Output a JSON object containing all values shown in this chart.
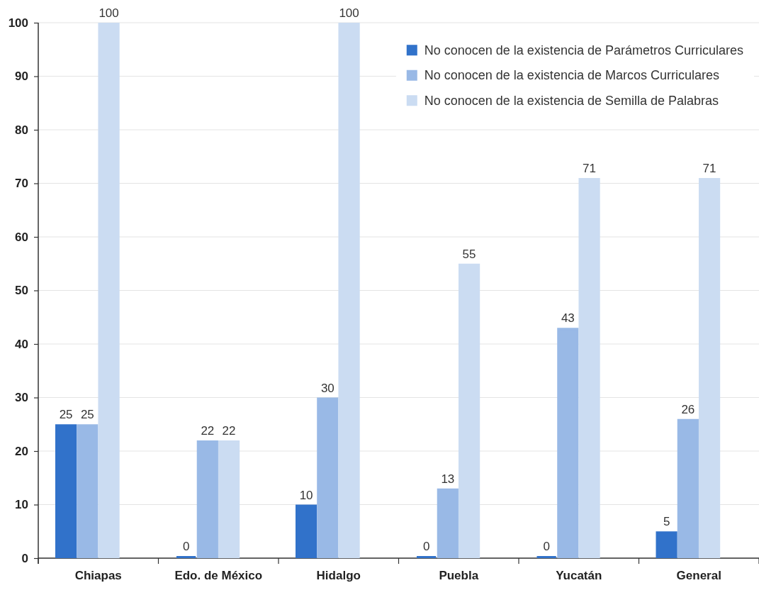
{
  "chart_data": {
    "type": "bar",
    "categories": [
      "Chiapas",
      "Edo. de México",
      "Hidalgo",
      "Puebla",
      "Yucatán",
      "General"
    ],
    "series": [
      {
        "name": "No conocen de la existencia de Parámetros Curriculares",
        "color": "#3172ca",
        "values": [
          25,
          0,
          10,
          0,
          0,
          5
        ]
      },
      {
        "name": "No conocen de la existencia de Marcos Curriculares",
        "color": "#99b9e6",
        "values": [
          25,
          22,
          30,
          13,
          43,
          26
        ]
      },
      {
        "name": "No conocen de la existencia de Semilla de Palabras",
        "color": "#cbdcf2",
        "values": [
          100,
          22,
          100,
          55,
          71,
          71
        ]
      }
    ],
    "ylim": [
      0,
      100
    ],
    "yticks": [
      0,
      10,
      20,
      30,
      40,
      50,
      60,
      70,
      80,
      90,
      100
    ],
    "grid": "y",
    "legend": "top right",
    "data_labels": true
  }
}
